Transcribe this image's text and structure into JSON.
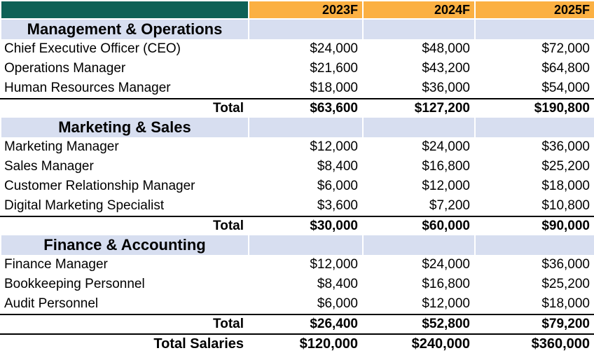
{
  "colors": {
    "corner_teal": "#0E6156",
    "year_header_orange": "#FBB042",
    "section_band_blue": "#D7DEF0",
    "text": "#000000",
    "background": "#FFFFFF",
    "rule_line": "#000000"
  },
  "header": {
    "columns": [
      "2023F",
      "2024F",
      "2025F"
    ]
  },
  "sections": [
    {
      "title": "Management & Operations",
      "rows": [
        {
          "label": "Chief Executive Officer (CEO)",
          "values": [
            "$24,000",
            "$48,000",
            "$72,000"
          ]
        },
        {
          "label": "Operations Manager",
          "values": [
            "$21,600",
            "$43,200",
            "$64,800"
          ]
        },
        {
          "label": "Human Resources Manager",
          "values": [
            "$18,000",
            "$36,000",
            "$54,000"
          ]
        }
      ],
      "total": {
        "label": "Total",
        "values": [
          "$63,600",
          "$127,200",
          "$190,800"
        ]
      }
    },
    {
      "title": "Marketing & Sales",
      "rows": [
        {
          "label": "Marketing Manager",
          "values": [
            "$12,000",
            "$24,000",
            "$36,000"
          ]
        },
        {
          "label": "Sales Manager",
          "values": [
            "$8,400",
            "$16,800",
            "$25,200"
          ]
        },
        {
          "label": "Customer Relationship Manager",
          "values": [
            "$6,000",
            "$12,000",
            "$18,000"
          ]
        },
        {
          "label": "Digital Marketing Specialist",
          "values": [
            "$3,600",
            "$7,200",
            "$10,800"
          ]
        }
      ],
      "total": {
        "label": "Total",
        "values": [
          "$30,000",
          "$60,000",
          "$90,000"
        ]
      }
    },
    {
      "title": "Finance & Accounting",
      "rows": [
        {
          "label": "Finance Manager",
          "values": [
            "$12,000",
            "$24,000",
            "$36,000"
          ]
        },
        {
          "label": "Bookkeeping Personnel",
          "values": [
            "$8,400",
            "$16,800",
            "$25,200"
          ]
        },
        {
          "label": "Audit Personnel",
          "values": [
            "$6,000",
            "$12,000",
            "$18,000"
          ]
        }
      ],
      "total": {
        "label": "Total",
        "values": [
          "$26,400",
          "$52,800",
          "$79,200"
        ]
      }
    }
  ],
  "grand_total": {
    "label": "Total Salaries",
    "values": [
      "$120,000",
      "$240,000",
      "$360,000"
    ]
  }
}
